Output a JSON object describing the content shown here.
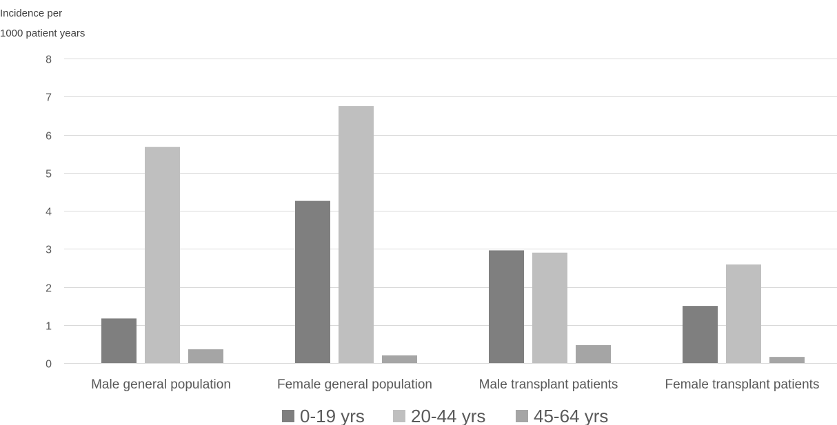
{
  "chart_data": {
    "type": "bar",
    "ylabel_lines": [
      "Incidence per",
      "1000 patient years"
    ],
    "xlabel": "",
    "categories": [
      "Male general population",
      "Female general population",
      "Male transplant patients",
      "Female transplant patients"
    ],
    "series": [
      {
        "name": "0-19 yrs",
        "color": "#7f7f7f",
        "values": [
          1.17,
          4.26,
          2.96,
          1.5
        ]
      },
      {
        "name": "20-44 yrs",
        "color": "#bfbfbf",
        "values": [
          5.68,
          6.75,
          2.9,
          2.59
        ]
      },
      {
        "name": "45-64 yrs",
        "color": "#a5a5a5",
        "values": [
          0.36,
          0.2,
          0.47,
          0.16
        ]
      }
    ],
    "ylim": [
      0,
      8
    ],
    "yticks": [
      0,
      1,
      2,
      3,
      4,
      5,
      6,
      7,
      8
    ],
    "grid": true,
    "legend_position": "bottom"
  }
}
